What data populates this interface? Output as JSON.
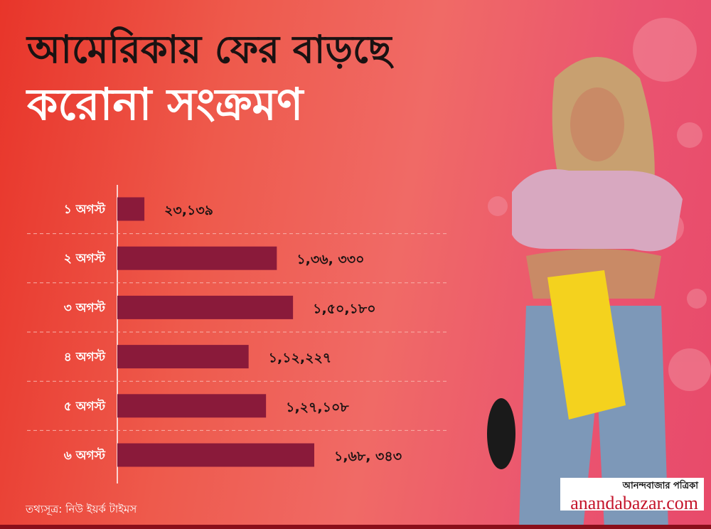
{
  "header": {
    "title_line1": "আমেরিকায় ফের বাড়ছে",
    "title_line2": "করোনা সংক্রমণ"
  },
  "chart_data": {
    "type": "bar",
    "orientation": "horizontal",
    "categories": [
      "১ অগস্ট",
      "২ অগস্ট",
      "৩ অগস্ট",
      "৪ অগস্ট",
      "৫ অগস্ট",
      "৬ অগস্ট"
    ],
    "values": [
      23139,
      136330,
      150180,
      112227,
      127108,
      168343
    ],
    "data_labels": [
      "২৩,১৩৯",
      "১,৩৬, ৩৩০",
      "১,৫০,১৮০",
      "১,১২,২২৭",
      "১,২৭,১০৮",
      "১,৬৮, ৩৪৩"
    ],
    "title": "আমেরিকায় ফের বাড়ছে করোনা সংক্রমণ",
    "xlabel": "",
    "ylabel": "",
    "grid": "dashed horizontal separators",
    "colors": {
      "bar": "#8a1a3a",
      "label": "#1a1212",
      "category": "#ffffff"
    }
  },
  "footer": {
    "source": "তথ্যসূত্র: নিউ ইয়র্ক টাইমস"
  },
  "logo": {
    "bengali": "আনন্দবাজার পত্রিকা",
    "english": "anandabazar.com"
  },
  "colors": {
    "background": "#ee5a4c",
    "bottom_bar": "#8a0f1a",
    "brand_red": "#c4142a"
  }
}
